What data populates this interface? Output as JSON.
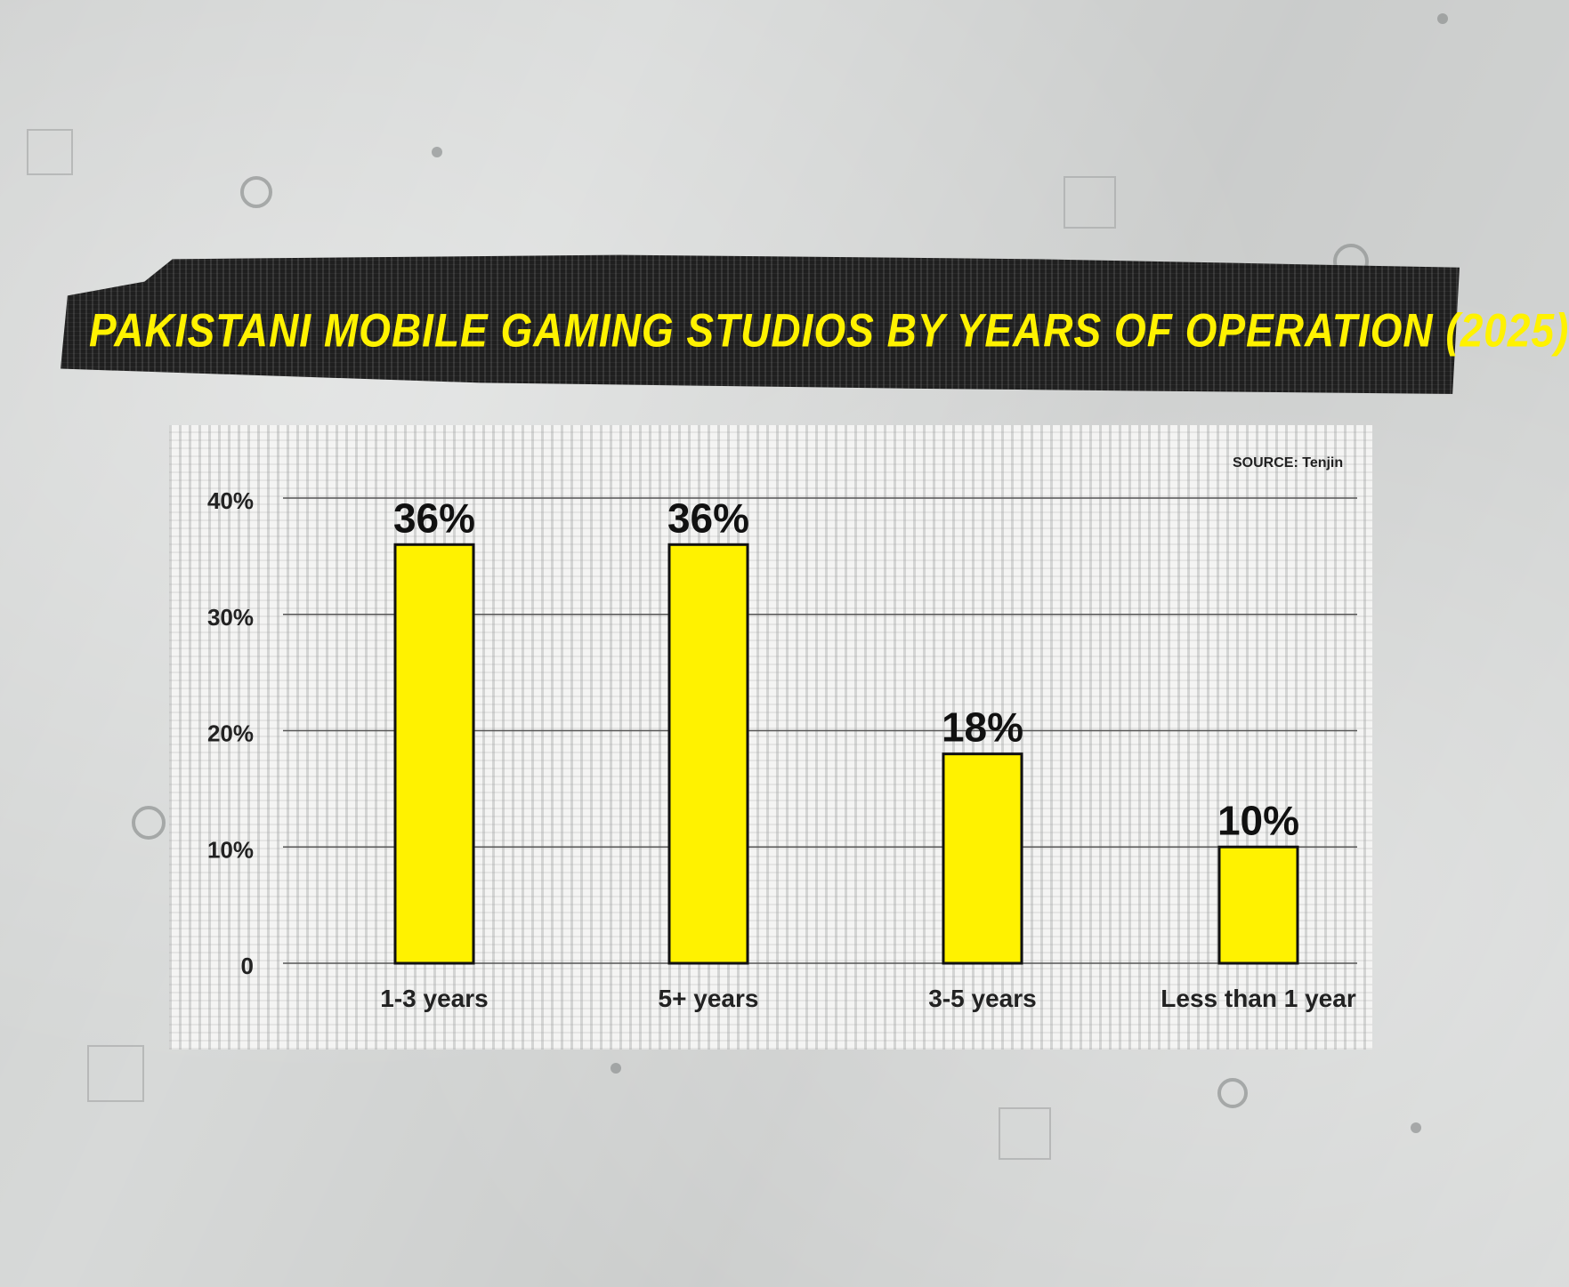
{
  "source": "SOURCE: Tenjin",
  "chart_data": {
    "type": "bar",
    "title": "PAKISTANI MOBILE GAMING STUDIOS BY YEARS OF OPERATION (2025)",
    "categories": [
      "1-3 years",
      "5+ years",
      "3-5 years",
      "Less than 1 year"
    ],
    "values": [
      36,
      36,
      18,
      10
    ],
    "value_labels": [
      "36%",
      "36%",
      "18%",
      "10%"
    ],
    "yticks": [
      0,
      10,
      20,
      30,
      40
    ],
    "ytick_labels": [
      "0",
      "10%",
      "20%",
      "30%",
      "40%"
    ],
    "ylim": [
      0,
      40
    ],
    "xlabel": "",
    "ylabel": "",
    "grid": true,
    "legend": "none",
    "bar_color": "#fff200",
    "title_color": "#fff200"
  }
}
